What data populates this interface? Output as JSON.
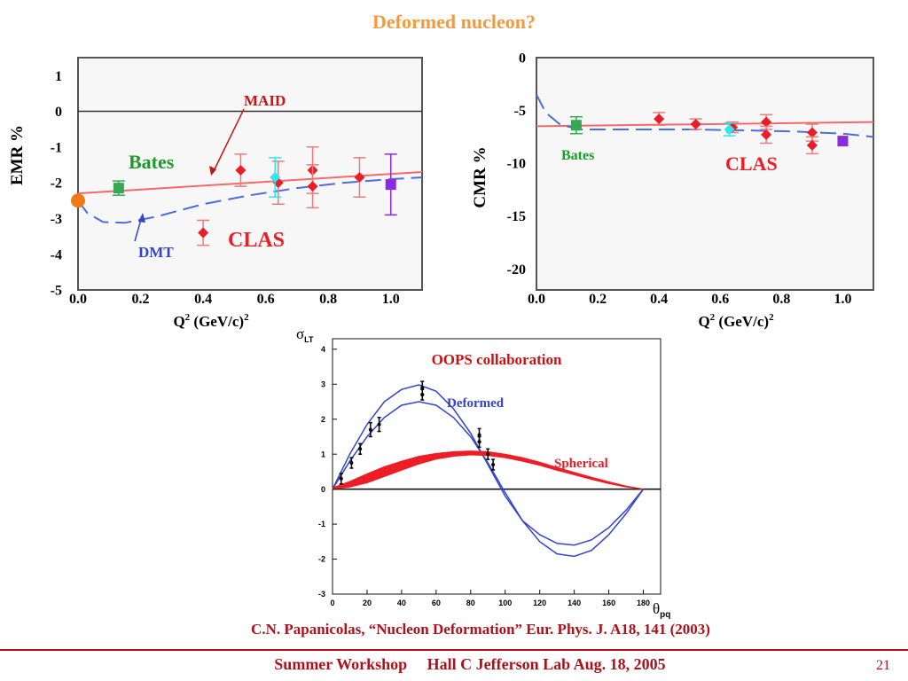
{
  "slide": {
    "title": "Deformed nucleon?",
    "citation": "C.N. Papanicolas,  “Nucleon Deformation”  Eur. Phys. J. A18, 141 (2003)",
    "footer": "Summer Workshop     Hall C Jefferson Lab Aug. 18, 2005",
    "page_number": "21",
    "colors": {
      "title": "#f39a3c",
      "footer": "#b0101a",
      "frame": "#555555"
    }
  },
  "chart_data": [
    {
      "id": "emr",
      "type": "scatter",
      "ylabel": "EMR %",
      "xlabel": "Q2 (GeV/c)2",
      "xlim": [
        0.0,
        1.1
      ],
      "ylim": [
        -5,
        1.5
      ],
      "x_ticks": [
        "0.0",
        "0.2",
        "0.4",
        "0.6",
        "0.8",
        "1.0"
      ],
      "y_ticks": [
        "1",
        "0",
        "-1",
        "-2",
        "-3",
        "-4",
        "-5"
      ],
      "annotations": [
        "MAID",
        "Bates",
        "DMT",
        "CLAS"
      ],
      "zero_line": 0,
      "series": [
        {
          "name": "MAID",
          "kind": "line",
          "color": "#f26b6b",
          "dash": false,
          "points": [
            [
              0.0,
              -2.3
            ],
            [
              1.1,
              -1.7
            ]
          ]
        },
        {
          "name": "DMT",
          "kind": "line",
          "color": "#4a6ee0",
          "dash": true,
          "points": [
            [
              0.0,
              -2.5
            ],
            [
              0.03,
              -2.85
            ],
            [
              0.08,
              -3.1
            ],
            [
              0.15,
              -3.12
            ],
            [
              0.25,
              -2.95
            ],
            [
              0.4,
              -2.6
            ],
            [
              0.55,
              -2.35
            ],
            [
              0.7,
              -2.15
            ],
            [
              0.85,
              -2.0
            ],
            [
              1.0,
              -1.9
            ],
            [
              1.1,
              -1.85
            ]
          ]
        },
        {
          "name": "Bates",
          "kind": "points",
          "color": "#34a853",
          "marker": "square",
          "points": [
            [
              0.13,
              -2.15,
              0.2
            ]
          ]
        },
        {
          "name": "CLAS",
          "kind": "points",
          "color": "#ee1c25",
          "marker": "diamond",
          "points": [
            [
              0.4,
              -3.4,
              0.35
            ],
            [
              0.52,
              -1.65,
              0.45
            ],
            [
              0.64,
              -2.0,
              0.6
            ],
            [
              0.75,
              -1.65,
              0.65
            ],
            [
              0.75,
              -2.1,
              0.6
            ],
            [
              0.9,
              -1.85,
              0.55
            ]
          ]
        },
        {
          "name": "CLAS-cyan",
          "kind": "points",
          "color": "#2ee6f0",
          "marker": "diamond",
          "points": [
            [
              0.63,
              -1.85,
              0.55
            ]
          ]
        },
        {
          "name": "Hall-C",
          "kind": "points",
          "color": "#8a2be2",
          "marker": "square",
          "points": [
            [
              1.0,
              -2.05,
              0.85
            ]
          ]
        },
        {
          "name": "Photon",
          "kind": "points",
          "color": "#f07a1a",
          "marker": "circle",
          "points": [
            [
              0.0,
              -2.5,
              0
            ]
          ]
        }
      ]
    },
    {
      "id": "cmr",
      "type": "scatter",
      "ylabel": "CMR %",
      "xlabel": "Q2 (GeV/c)2",
      "xlim": [
        0.0,
        1.1
      ],
      "ylim": [
        -22,
        0
      ],
      "x_ticks": [
        "0.0",
        "0.2",
        "0.4",
        "0.6",
        "0.8",
        "1.0"
      ],
      "y_ticks": [
        "0",
        "-5",
        "-10",
        "-15",
        "-20"
      ],
      "annotations": [
        "Bates",
        "CLAS"
      ],
      "series": [
        {
          "name": "MAID",
          "kind": "line",
          "color": "#f26b6b",
          "dash": false,
          "points": [
            [
              0.0,
              -6.5
            ],
            [
              1.1,
              -6.1
            ]
          ]
        },
        {
          "name": "DMT",
          "kind": "line",
          "color": "#4a6ee0",
          "dash": true,
          "points": [
            [
              0.0,
              -3.5
            ],
            [
              0.03,
              -5.2
            ],
            [
              0.08,
              -6.4
            ],
            [
              0.15,
              -6.8
            ],
            [
              0.3,
              -6.8
            ],
            [
              0.5,
              -6.8
            ],
            [
              0.7,
              -6.9
            ],
            [
              0.85,
              -7.0
            ],
            [
              1.0,
              -7.2
            ],
            [
              1.1,
              -7.5
            ]
          ]
        },
        {
          "name": "Bates",
          "kind": "points",
          "color": "#34a853",
          "marker": "square",
          "points": [
            [
              0.13,
              -6.4,
              0.8
            ]
          ]
        },
        {
          "name": "CLAS",
          "kind": "points",
          "color": "#ee1c25",
          "marker": "diamond",
          "points": [
            [
              0.4,
              -5.8,
              0.6
            ],
            [
              0.52,
              -6.3,
              0.5
            ],
            [
              0.64,
              -6.6,
              0.5
            ],
            [
              0.75,
              -6.1,
              0.7
            ],
            [
              0.75,
              -7.3,
              0.8
            ],
            [
              0.9,
              -7.1,
              0.8
            ],
            [
              0.9,
              -8.3,
              0.8
            ]
          ]
        },
        {
          "name": "CLAS-cyan",
          "kind": "points",
          "color": "#2ee6f0",
          "marker": "diamond",
          "points": [
            [
              0.63,
              -6.8,
              0.6
            ]
          ]
        },
        {
          "name": "Hall-C",
          "kind": "points",
          "color": "#8a2be2",
          "marker": "square",
          "points": [
            [
              1.0,
              -7.9,
              0
            ]
          ]
        }
      ]
    },
    {
      "id": "oops",
      "type": "line",
      "title": "OOPS collaboration",
      "ylabel": "σLT",
      "xlabel": "θpq",
      "xlim": [
        0,
        190
      ],
      "ylim": [
        -3,
        4.3
      ],
      "x_ticks": [
        "0",
        "20",
        "40",
        "60",
        "80",
        "100",
        "120",
        "140",
        "160",
        "180"
      ],
      "y_ticks": [
        "4",
        "3",
        "2",
        "1",
        "0",
        "-1",
        "-2",
        "-3"
      ],
      "series": [
        {
          "name": "Deformed",
          "kind": "line",
          "color": "#3344cc",
          "points": [
            [
              0,
              0
            ],
            [
              10,
              1.0
            ],
            [
              20,
              1.85
            ],
            [
              30,
              2.5
            ],
            [
              40,
              2.85
            ],
            [
              50,
              2.98
            ],
            [
              60,
              2.8
            ],
            [
              70,
              2.3
            ],
            [
              80,
              1.6
            ],
            [
              90,
              0.7
            ],
            [
              100,
              -0.2
            ],
            [
              110,
              -0.9
            ],
            [
              120,
              -1.3
            ],
            [
              130,
              -1.55
            ],
            [
              140,
              -1.6
            ],
            [
              150,
              -1.45
            ],
            [
              160,
              -1.1
            ],
            [
              170,
              -0.6
            ],
            [
              180,
              0
            ]
          ]
        },
        {
          "name": "Deformed-2",
          "kind": "line",
          "color": "#3344cc",
          "points": [
            [
              0,
              0
            ],
            [
              10,
              0.8
            ],
            [
              20,
              1.5
            ],
            [
              30,
              2.05
            ],
            [
              40,
              2.4
            ],
            [
              50,
              2.5
            ],
            [
              60,
              2.4
            ],
            [
              70,
              2.05
            ],
            [
              80,
              1.5
            ],
            [
              90,
              0.75
            ],
            [
              100,
              -0.1
            ],
            [
              110,
              -0.9
            ],
            [
              120,
              -1.5
            ],
            [
              130,
              -1.85
            ],
            [
              140,
              -1.92
            ],
            [
              150,
              -1.75
            ],
            [
              160,
              -1.3
            ],
            [
              170,
              -0.7
            ],
            [
              180,
              0
            ]
          ]
        },
        {
          "name": "Spherical",
          "kind": "band",
          "color": "#ee1c25",
          "upper": [
            [
              0,
              0.04
            ],
            [
              10,
              0.22
            ],
            [
              20,
              0.44
            ],
            [
              30,
              0.64
            ],
            [
              40,
              0.8
            ],
            [
              50,
              0.94
            ],
            [
              60,
              1.02
            ],
            [
              70,
              1.07
            ],
            [
              80,
              1.09
            ],
            [
              90,
              1.07
            ],
            [
              100,
              1.0
            ],
            [
              110,
              0.9
            ],
            [
              120,
              0.77
            ],
            [
              130,
              0.62
            ],
            [
              140,
              0.48
            ],
            [
              150,
              0.34
            ],
            [
              160,
              0.21
            ],
            [
              170,
              0.09
            ],
            [
              180,
              0
            ]
          ],
          "lower": [
            [
              0,
              0
            ],
            [
              10,
              0.06
            ],
            [
              20,
              0.18
            ],
            [
              30,
              0.36
            ],
            [
              40,
              0.54
            ],
            [
              50,
              0.72
            ],
            [
              60,
              0.86
            ],
            [
              70,
              0.94
            ],
            [
              80,
              0.98
            ],
            [
              90,
              0.96
            ],
            [
              100,
              0.9
            ],
            [
              110,
              0.8
            ],
            [
              120,
              0.68
            ],
            [
              130,
              0.54
            ],
            [
              140,
              0.41
            ],
            [
              150,
              0.28
            ],
            [
              160,
              0.16
            ],
            [
              170,
              0.06
            ],
            [
              180,
              0
            ]
          ]
        },
        {
          "name": "Data",
          "kind": "points",
          "color": "#000000",
          "marker": "dot",
          "points": [
            [
              5,
              0.3,
              0.15
            ],
            [
              11,
              0.75,
              0.15
            ],
            [
              16,
              1.15,
              0.15
            ],
            [
              22,
              1.7,
              0.2
            ],
            [
              27,
              1.85,
              0.2
            ],
            [
              52,
              2.9,
              0.18
            ],
            [
              52,
              2.7,
              0.15
            ],
            [
              85,
              1.55,
              0.18
            ],
            [
              85,
              1.35,
              0.15
            ],
            [
              90,
              1.0,
              0.15
            ],
            [
              93,
              0.7,
              0.15
            ]
          ]
        }
      ]
    }
  ]
}
